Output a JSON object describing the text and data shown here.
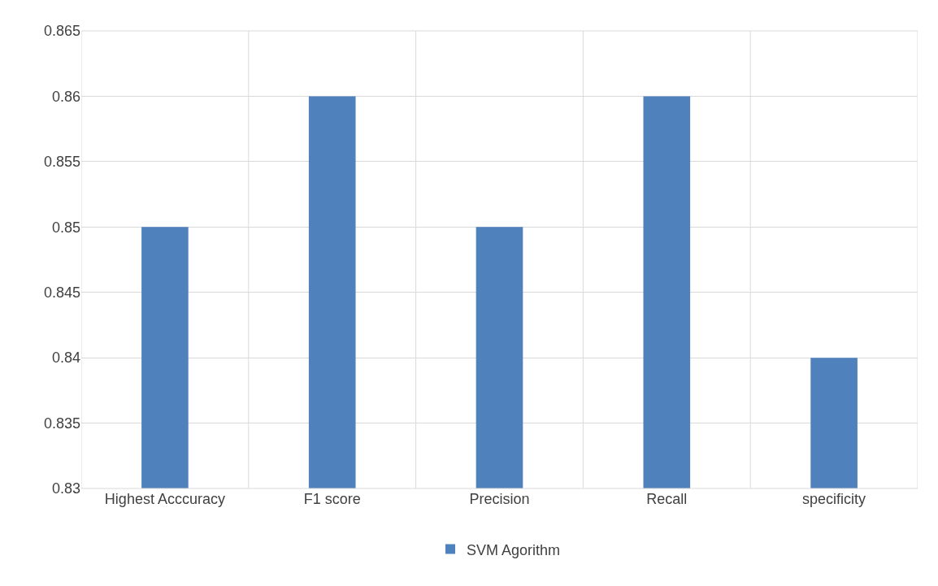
{
  "chart_data": {
    "type": "bar",
    "categories": [
      "Highest Acccuracy",
      "F1 score",
      "Precision",
      "Recall",
      "specificity"
    ],
    "series": [
      {
        "name": "SVM Agorithm",
        "color": "#4f81bd",
        "values": [
          0.85,
          0.86,
          0.85,
          0.86,
          0.84
        ]
      }
    ],
    "ylim": [
      0.83,
      0.865
    ],
    "yticks": [
      0.83,
      0.835,
      0.84,
      0.845,
      0.85,
      0.855,
      0.86,
      0.865
    ],
    "grid": true,
    "legend": "bottom"
  }
}
